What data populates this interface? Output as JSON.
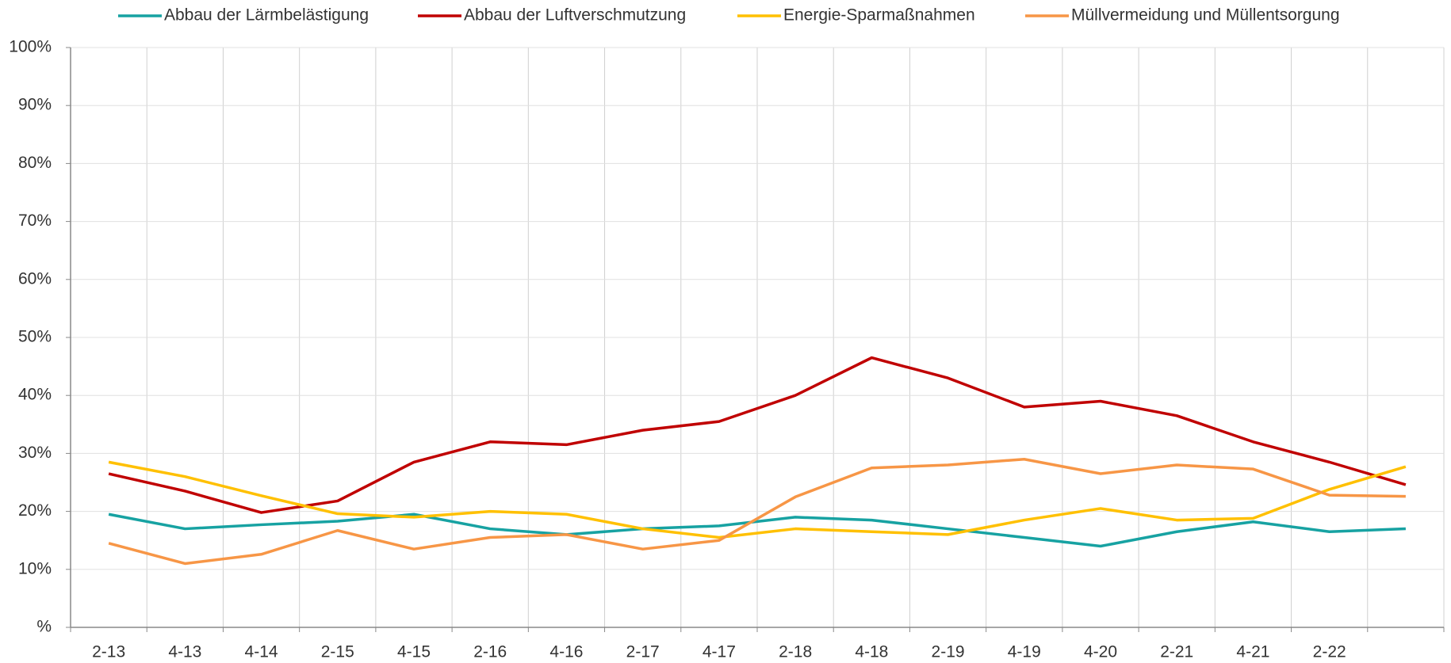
{
  "chart_data": {
    "type": "line",
    "categories": [
      "2-13",
      "4-13",
      "4-14",
      "2-15",
      "4-15",
      "2-16",
      "4-16",
      "2-17",
      "4-17",
      "2-18",
      "4-18",
      "2-19",
      "4-19",
      "4-20",
      "2-21",
      "4-21",
      "2-22",
      null
    ],
    "series": [
      {
        "name": "Abbau der Lärmbelästigung",
        "color": "#17a2a2",
        "values": [
          19.5,
          17,
          17.7,
          18.3,
          19.5,
          17,
          16,
          17,
          17.5,
          19,
          18.5,
          17,
          15.5,
          14,
          16.5,
          18.2,
          16.5,
          17
        ]
      },
      {
        "name": "Abbau der Luftverschmutzung",
        "color": "#c00000",
        "values": [
          26.5,
          23.5,
          19.8,
          21.8,
          28.5,
          32,
          31.5,
          34,
          35.5,
          40,
          46.5,
          43,
          38,
          39,
          36.5,
          32,
          28.5,
          24.6
        ]
      },
      {
        "name": "Energie-Sparmaßnahmen",
        "color": "#ffc000",
        "values": [
          28.5,
          26,
          22.7,
          19.6,
          19,
          20,
          19.5,
          17,
          15.5,
          17,
          16.5,
          16,
          18.5,
          20.5,
          18.5,
          18.8,
          23.8,
          27.7
        ]
      },
      {
        "name": "Müllvermeidung und Müllentsorgung",
        "color": "#f79646",
        "values": [
          14.5,
          11,
          12.6,
          16.7,
          13.5,
          15.5,
          16,
          13.5,
          15,
          22.5,
          27.5,
          28,
          29,
          26.5,
          28,
          27.3,
          22.8,
          22.6
        ]
      }
    ],
    "ylim": [
      0,
      100
    ],
    "yticks": [
      {
        "value": 0,
        "label": "%"
      },
      {
        "value": 10,
        "label": "10%"
      },
      {
        "value": 20,
        "label": "20%"
      },
      {
        "value": 30,
        "label": "30%"
      },
      {
        "value": 40,
        "label": "40%"
      },
      {
        "value": 50,
        "label": "50%"
      },
      {
        "value": 60,
        "label": "60%"
      },
      {
        "value": 70,
        "label": "70%"
      },
      {
        "value": 80,
        "label": "80%"
      },
      {
        "value": 90,
        "label": "90%"
      },
      {
        "value": 100,
        "label": "100%"
      }
    ],
    "grid": true,
    "legend": "top"
  }
}
